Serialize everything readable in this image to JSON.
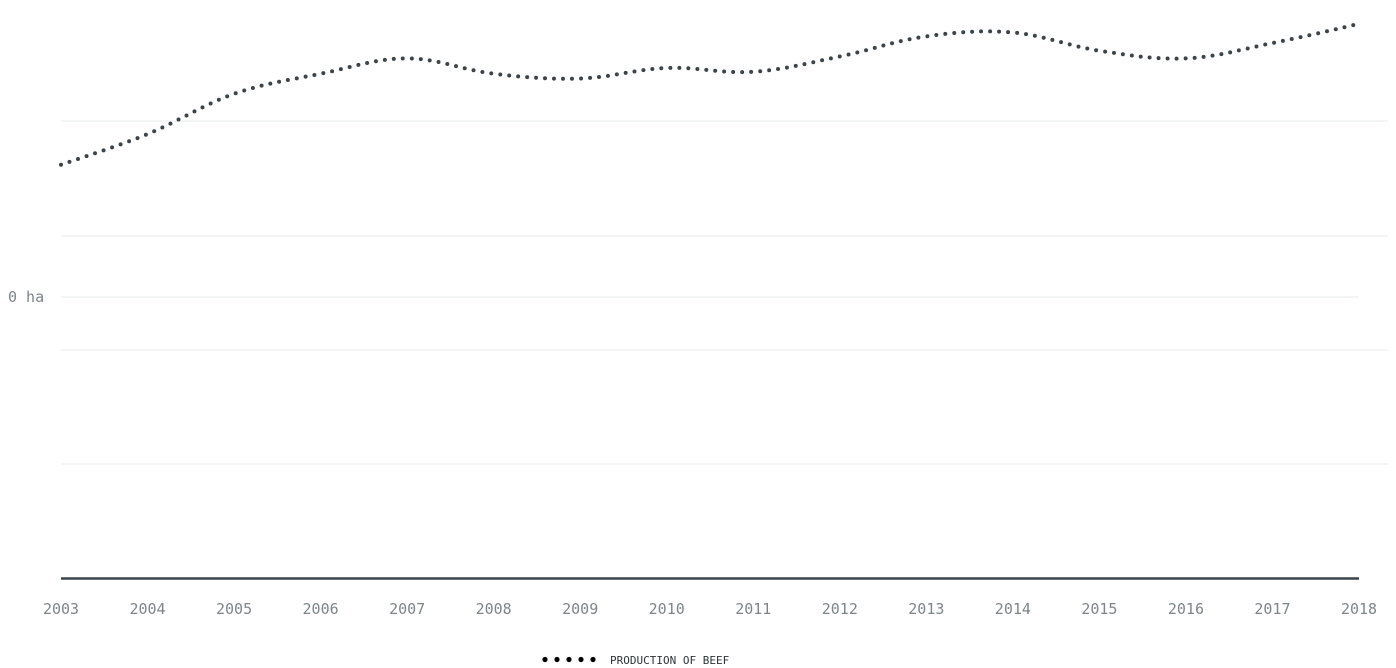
{
  "chart_data": {
    "type": "line",
    "title": "",
    "xlabel": "",
    "ylabel": "",
    "x": [
      "2003",
      "2004",
      "2005",
      "2006",
      "2007",
      "2008",
      "2009",
      "2010",
      "2011",
      "2012",
      "2013",
      "2014",
      "2015",
      "2016",
      "2017",
      "2018"
    ],
    "series": [
      {
        "name": "PRODUCTION OF BEEF",
        "color": "#3b4449",
        "values": [
          -138,
          -170,
          -212,
          -233,
          -249,
          -233,
          -228,
          -239,
          -235,
          -251,
          -272,
          -276,
          -257,
          -249,
          -265,
          -285
        ]
      }
    ],
    "yticks": [
      {
        "value": 0,
        "label": "0 ha"
      }
    ],
    "ylim": [
      -300,
      300
    ],
    "grid": true,
    "legend_position": "bottom-center"
  }
}
